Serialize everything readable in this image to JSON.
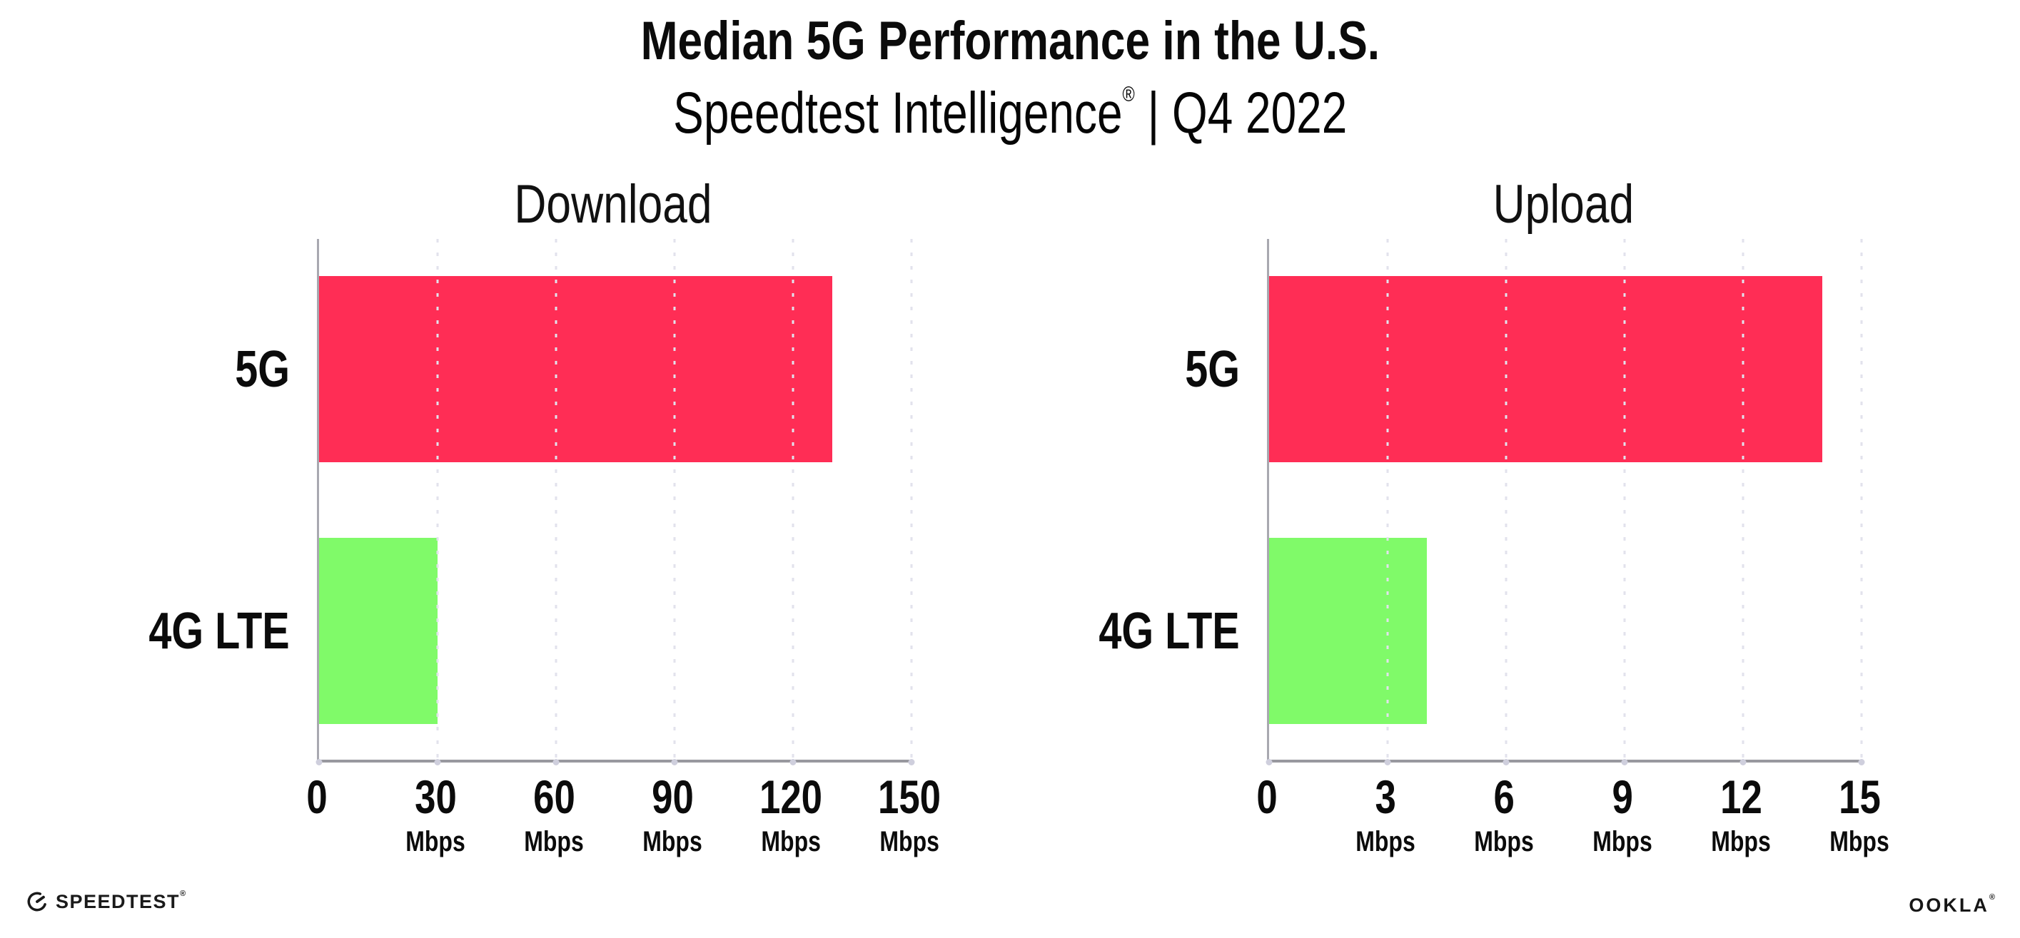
{
  "header": {
    "title": "Median 5G Performance in the U.S.",
    "subtitle_brand": "Speedtest Intelligence",
    "subtitle_reg": "®",
    "subtitle_rest": " | Q4 2022"
  },
  "chart_data": [
    {
      "type": "bar",
      "orientation": "horizontal",
      "title": "Download",
      "categories": [
        "5G",
        "4G LTE"
      ],
      "values": [
        130,
        30
      ],
      "value_unit": "Mbps",
      "xlim": [
        0,
        150
      ],
      "xticks": [
        0,
        30,
        60,
        90,
        120,
        150
      ],
      "xtick_unit": "Mbps",
      "bar_colors": [
        "#ff2d55",
        "#80fa69"
      ],
      "grid": "vertical-dotted",
      "legend": false
    },
    {
      "type": "bar",
      "orientation": "horizontal",
      "title": "Upload",
      "categories": [
        "5G",
        "4G LTE"
      ],
      "values": [
        14,
        4
      ],
      "value_unit": "Mbps",
      "xlim": [
        0,
        15
      ],
      "xticks": [
        0,
        3,
        6,
        9,
        12,
        15
      ],
      "xtick_unit": "Mbps",
      "bar_colors": [
        "#ff2d55",
        "#80fa69"
      ],
      "grid": "vertical-dotted",
      "legend": false
    }
  ],
  "footer": {
    "speedtest_logo_text": "SPEEDTEST",
    "speedtest_logo_mark": "®",
    "ookla_logo_text": "OOKLA",
    "ookla_logo_mark": "®"
  },
  "colors": {
    "bar_5g": "#ff2d55",
    "bar_4g_lte": "#80fa69",
    "gridline": "#e2e2ec",
    "axis": "#98989f",
    "text": "#0b0b0b",
    "background": "#ffffff"
  }
}
